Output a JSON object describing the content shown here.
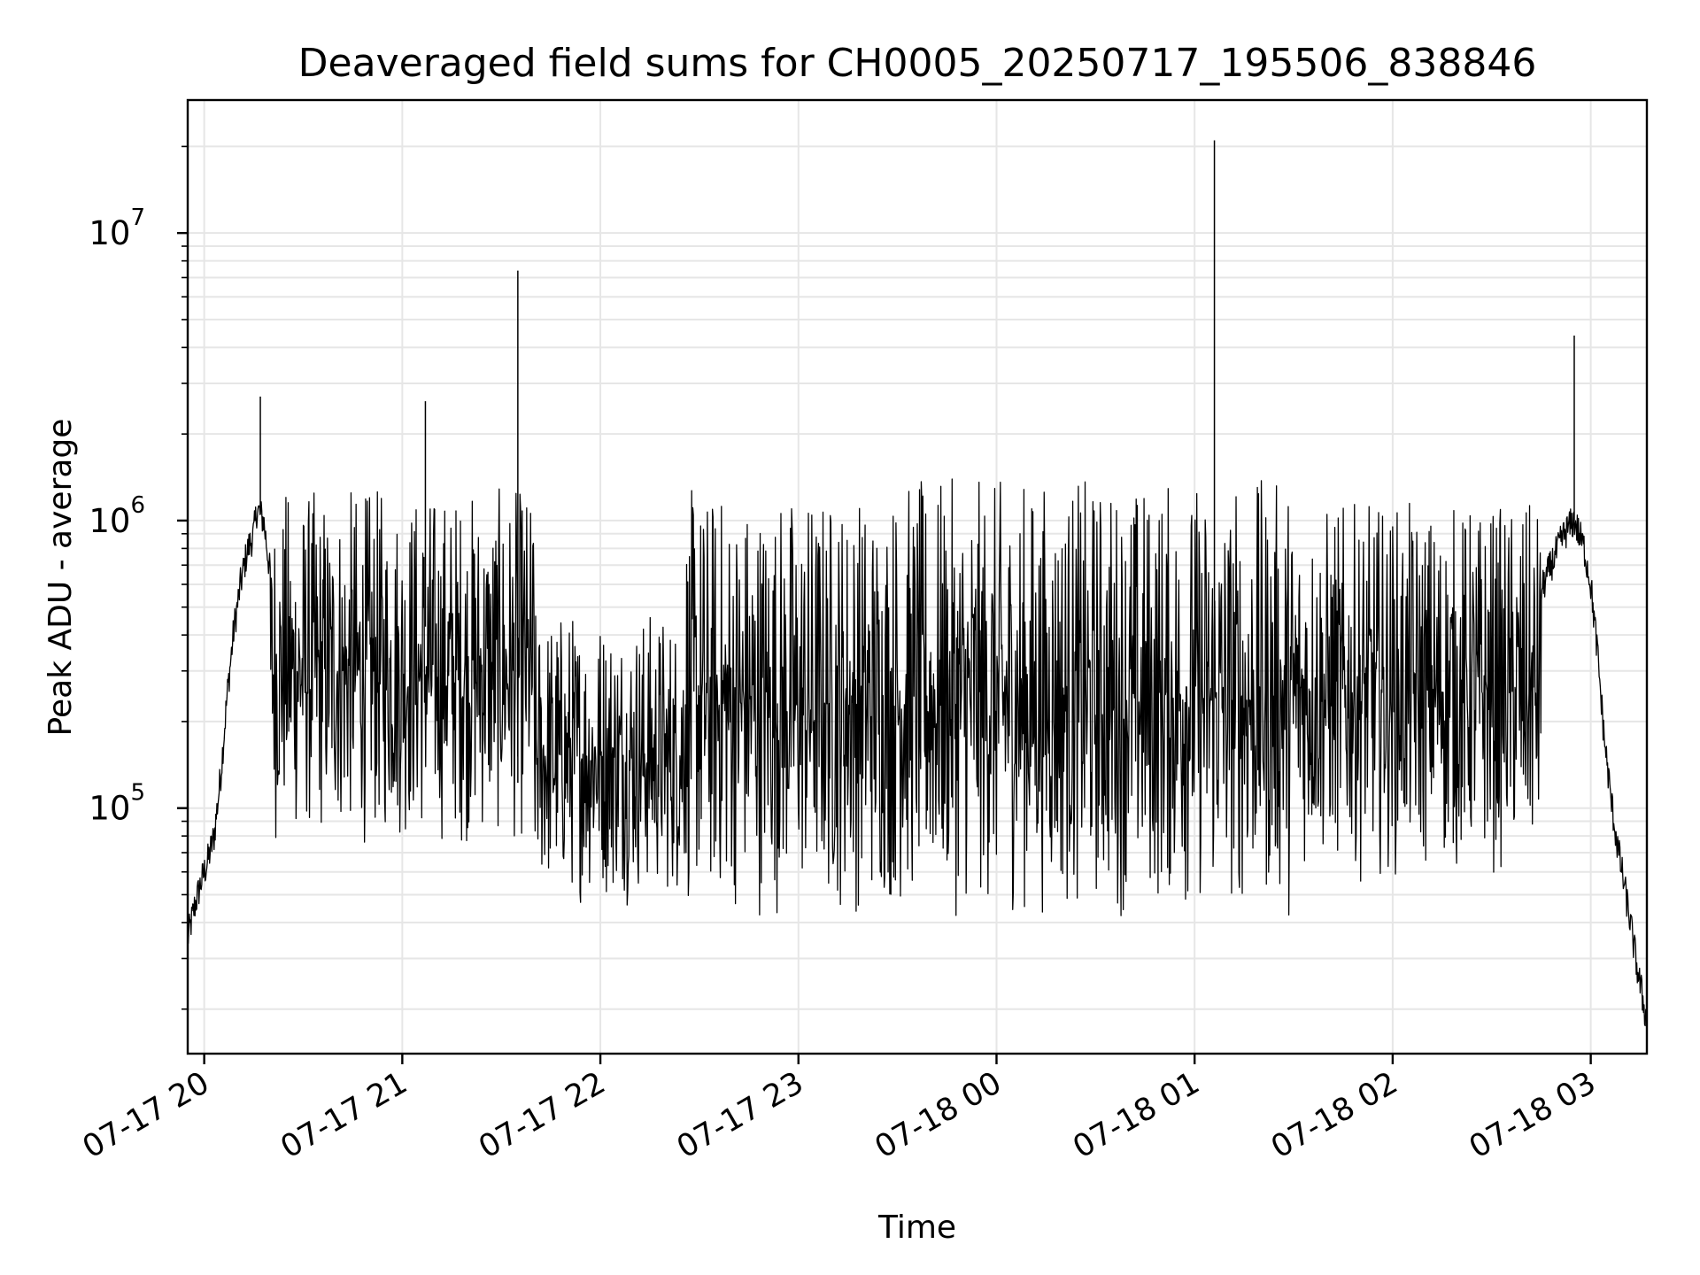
{
  "chart_data": {
    "type": "line",
    "title": "Deaveraged field sums for CH0005_20250717_195506_838846",
    "xlabel": "Time",
    "ylabel": "Peak ADU - average",
    "yscale": "log",
    "ylim": [
      14000,
      29000000
    ],
    "xlim": [
      "2025-07-17 19:55",
      "2025-07-18 03:17"
    ],
    "grid": true,
    "line_color": "#000000",
    "grid_color": "#e6e6e6",
    "xticks": [
      {
        "value": "2025-07-17 20:00",
        "label": "07-17 20"
      },
      {
        "value": "2025-07-17 21:00",
        "label": "07-17 21"
      },
      {
        "value": "2025-07-17 22:00",
        "label": "07-17 22"
      },
      {
        "value": "2025-07-17 23:00",
        "label": "07-17 23"
      },
      {
        "value": "2025-07-18 00:00",
        "label": "07-18 00"
      },
      {
        "value": "2025-07-18 01:00",
        "label": "07-18 01"
      },
      {
        "value": "2025-07-18 02:00",
        "label": "07-18 02"
      },
      {
        "value": "2025-07-18 03:00",
        "label": "07-18 03"
      }
    ],
    "yticks": [
      {
        "value": 100000,
        "base": "10",
        "exp": "5"
      },
      {
        "value": 1000000,
        "base": "10",
        "exp": "6"
      },
      {
        "value": 10000000,
        "base": "10",
        "exp": "7"
      }
    ],
    "series": [
      {
        "points": [
          [
            "2025-07-17 19:55",
            35000
          ],
          [
            "2025-07-17 19:57",
            45000
          ],
          [
            "2025-07-17 19:59",
            55000
          ],
          [
            "2025-07-17 20:01",
            65000
          ],
          [
            "2025-07-17 20:03",
            80000
          ],
          [
            "2025-07-17 20:05",
            130000
          ],
          [
            "2025-07-17 20:07",
            250000
          ],
          [
            "2025-07-17 20:09",
            420000
          ],
          [
            "2025-07-17 20:11",
            600000
          ],
          [
            "2025-07-17 20:13",
            780000
          ],
          [
            "2025-07-17 20:15",
            900000
          ],
          [
            "2025-07-17 20:16",
            1100000
          ],
          [
            "2025-07-17 20:18",
            1000000
          ],
          [
            "2025-07-17 20:20",
            650000
          ],
          [
            "2025-07-17 20:25",
            500000
          ],
          [
            "2025-07-17 20:30",
            550000
          ],
          [
            "2025-07-17 20:40",
            600000
          ],
          [
            "2025-07-17 20:50",
            650000
          ],
          [
            "2025-07-17 21:00",
            500000
          ],
          [
            "2025-07-17 21:10",
            400000
          ],
          [
            "2025-07-17 21:20",
            300000
          ],
          [
            "2025-07-17 21:30",
            150000
          ],
          [
            "2025-07-17 21:40",
            100000
          ],
          [
            "2025-07-17 22:00",
            80000
          ],
          [
            "2025-07-17 22:20",
            70000
          ],
          [
            "2025-07-17 22:40",
            80000
          ],
          [
            "2025-07-17 23:00",
            90000
          ],
          [
            "2025-07-17 23:20",
            250000
          ],
          [
            "2025-07-17 23:40",
            300000
          ],
          [
            "2025-07-18 00:00",
            300000
          ],
          [
            "2025-07-18 00:30",
            320000
          ],
          [
            "2025-07-18 01:00",
            300000
          ],
          [
            "2025-07-18 01:30",
            320000
          ],
          [
            "2025-07-18 02:00",
            350000
          ],
          [
            "2025-07-18 02:20",
            380000
          ],
          [
            "2025-07-18 02:40",
            400000
          ],
          [
            "2025-07-18 02:48",
            700000
          ],
          [
            "2025-07-18 02:52",
            900000
          ],
          [
            "2025-07-18 02:55",
            1000000
          ],
          [
            "2025-07-18 02:58",
            800000
          ],
          [
            "2025-07-18 03:00",
            600000
          ],
          [
            "2025-07-18 03:02",
            350000
          ],
          [
            "2025-07-18 03:04",
            180000
          ],
          [
            "2025-07-18 03:06",
            110000
          ],
          [
            "2025-07-18 03:08",
            75000
          ],
          [
            "2025-07-18 03:10",
            55000
          ],
          [
            "2025-07-18 03:12",
            40000
          ],
          [
            "2025-07-18 03:14",
            28000
          ],
          [
            "2025-07-18 03:17",
            18000
          ]
        ],
        "fast_variation": [
          {
            "from": "2025-07-17 20:20",
            "to": "2025-07-17 21:40",
            "low": 70000,
            "high": 1300000
          },
          {
            "from": "2025-07-17 21:40",
            "to": "2025-07-17 22:25",
            "low": 45000,
            "high": 500000
          },
          {
            "from": "2025-07-17 22:25",
            "to": "2025-07-17 23:25",
            "low": 40000,
            "high": 1300000
          },
          {
            "from": "2025-07-17 23:25",
            "to": "2025-07-18 01:30",
            "low": 40000,
            "high": 1400000
          },
          {
            "from": "2025-07-18 01:30",
            "to": "2025-07-18 02:45",
            "low": 55000,
            "high": 1150000
          }
        ],
        "spikes": [
          [
            "2025-07-17 20:17",
            2700000
          ],
          [
            "2025-07-17 21:07",
            2600000
          ],
          [
            "2025-07-17 21:35",
            7400000
          ],
          [
            "2025-07-18 01:06",
            21000000
          ],
          [
            "2025-07-18 02:55",
            4400000
          ]
        ]
      }
    ]
  }
}
